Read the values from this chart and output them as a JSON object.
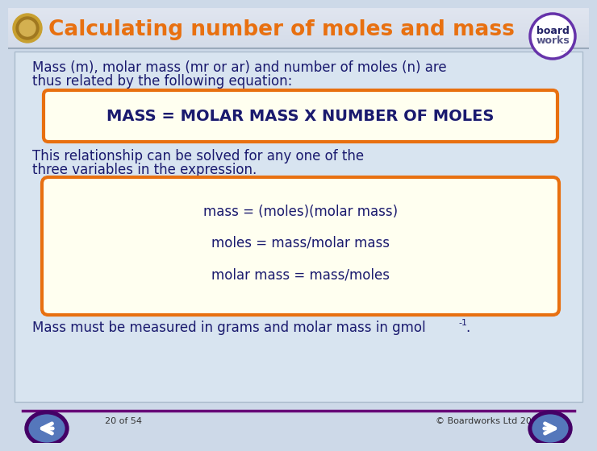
{
  "title": "Calculating number of moles and mass",
  "title_color": "#E87010",
  "body_bg": "#cdd9e8",
  "header_bg_top": "#b8c8dc",
  "header_bg_bot": "#dde6f0",
  "text1_line1": "Mass (m), molar mass (mr or ar) and number of moles (n) are",
  "text1_line2": "thus related by the following equation:",
  "box1_text": "MASS = MOLAR MASS X NUMBER OF MOLES",
  "box1_fill": "#fffff0",
  "box1_edge": "#E87010",
  "text2_line1": "This relationship can be solved for any one of the",
  "text2_line2": "three variables in the expression.",
  "box2_fill": "#fffff0",
  "box2_edge": "#E87010",
  "box2_lines": [
    "mass = (moles)(molar mass)",
    "moles = mass/molar mass",
    "molar mass = mass/moles"
  ],
  "footer_line": "Mass must be measured in grams and molar mass in gmol",
  "footer_super": "-1",
  "footer_dot": ".",
  "slide_num": "20 of 54",
  "copyright": "© Boardworks Ltd 2007",
  "dark_blue": "#1a1a6e",
  "mid_purple": "#660077",
  "nav_blue": "#5577bb",
  "nav_edge": "#440066",
  "bw_circle_color": "#6633aa",
  "white": "#ffffff"
}
